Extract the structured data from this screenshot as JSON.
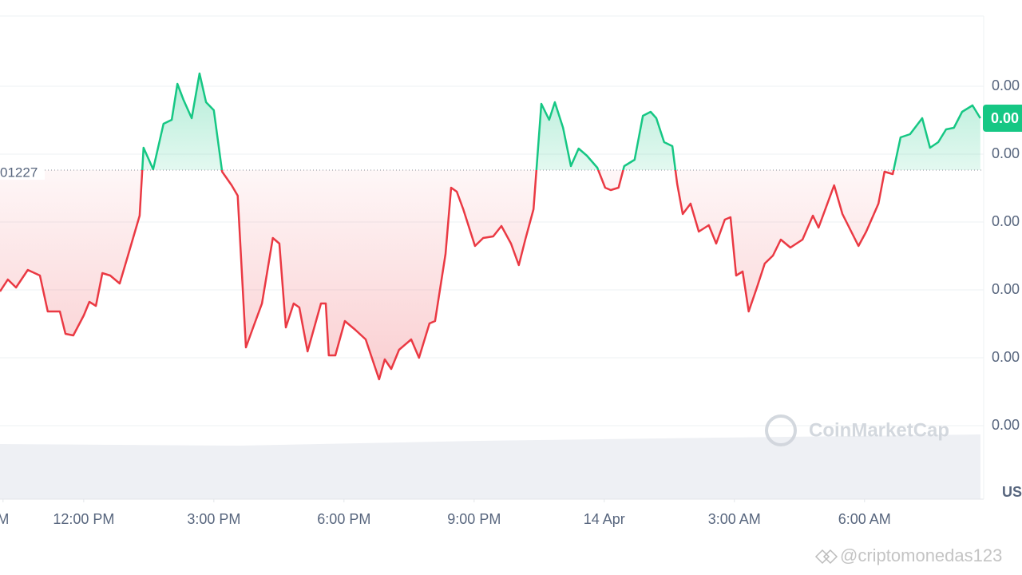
{
  "chart_data": {
    "type": "line",
    "x": [
      10.07,
      10.25,
      10.44,
      10.71,
      10.99,
      11.17,
      11.45,
      11.58,
      11.76,
      12.0,
      12.13,
      12.28,
      12.43,
      12.61,
      12.83,
      13.01,
      13.29,
      13.38,
      13.6,
      13.84,
      14.03,
      14.16,
      14.3,
      14.49,
      14.67,
      14.82,
      15.0,
      15.19,
      15.41,
      15.55,
      15.74,
      15.92,
      16.11,
      16.36,
      16.51,
      16.66,
      16.84,
      16.97,
      17.16,
      17.34,
      17.47,
      17.58,
      17.65,
      17.8,
      18.02,
      18.26,
      18.5,
      18.81,
      18.94,
      19.09,
      19.27,
      19.55,
      19.73,
      19.97,
      20.1,
      20.34,
      20.47,
      20.6,
      20.75,
      21.02,
      21.21,
      21.44,
      21.63,
      21.85,
      22.03,
      22.18,
      22.37,
      22.55,
      22.73,
      22.86,
      23.05,
      23.23,
      23.41,
      23.6,
      23.84,
      24.02,
      24.15,
      24.33,
      24.46,
      24.7,
      24.89,
      25.07,
      25.2,
      25.38,
      25.57,
      25.68,
      25.81,
      25.99,
      26.18,
      26.41,
      26.58,
      26.78,
      26.91,
      27.04,
      27.19,
      27.33,
      27.52,
      27.7,
      27.89,
      28.07,
      28.29,
      28.57,
      28.81,
      28.94,
      29.3,
      29.49,
      29.86,
      30.04,
      30.32,
      30.46,
      30.65,
      30.83,
      31.05,
      31.33,
      31.51,
      31.7,
      31.88,
      32.06,
      32.25,
      32.49,
      32.67
    ],
    "values": [
      0.00011662,
      0.00011722,
      0.00011682,
      0.0001177,
      0.00011742,
      0.00011562,
      0.00011562,
      0.0001145,
      0.00011442,
      0.00011542,
      0.0001161,
      0.0001159,
      0.00011754,
      0.00011742,
      0.00011702,
      0.00011834,
      0.00012042,
      0.00012382,
      0.00012274,
      0.00012502,
      0.00012522,
      0.00012702,
      0.00012622,
      0.0001253,
      0.00012754,
      0.0001261,
      0.0001257,
      0.00012262,
      0.00012194,
      0.00012142,
      0.00011382,
      0.0001149,
      0.00011602,
      0.0001193,
      0.00011902,
      0.00011482,
      0.00011602,
      0.00011582,
      0.00011362,
      0.00011502,
      0.00011602,
      0.00011602,
      0.00011342,
      0.00011342,
      0.00011514,
      0.0001147,
      0.00011422,
      0.00011222,
      0.00011322,
      0.00011274,
      0.0001137,
      0.00011422,
      0.0001133,
      0.00011502,
      0.00011514,
      0.0001185,
      0.00012182,
      0.00012162,
      0.00012074,
      0.0001189,
      0.0001193,
      0.00011938,
      0.0001199,
      0.00011902,
      0.00011794,
      0.00011922,
      0.00012074,
      0.00012602,
      0.00012522,
      0.0001261,
      0.00012482,
      0.0001229,
      0.00012378,
      0.00012342,
      0.00012282,
      0.00012182,
      0.0001217,
      0.00012182,
      0.0001229,
      0.00012322,
      0.00012542,
      0.00012562,
      0.0001253,
      0.0001241,
      0.0001239,
      0.00012202,
      0.0001205,
      0.00012102,
      0.00011962,
      0.00011994,
      0.00011902,
      0.00012022,
      0.00012034,
      0.00011742,
      0.00011762,
      0.00011562,
      0.00011682,
      0.00011802,
      0.00011842,
      0.00011922,
      0.00011882,
      0.00011922,
      0.00012042,
      0.00011982,
      0.00012194,
      0.0001205,
      0.0001189,
      0.00011962,
      0.00012102,
      0.00012262,
      0.0001225,
      0.00012434,
      0.0001245,
      0.0001253,
      0.00012382,
      0.0001241,
      0.00012474,
      0.00012482,
      0.00012562,
      0.00012594,
      0.0001253
    ],
    "up_color": "#16c784",
    "down_color": "#ea3943",
    "baseline": {
      "value": 0.0001227,
      "label": "01227"
    },
    "current_price": {
      "value": 0.0001253,
      "label": "0.00"
    },
    "xlim": [
      10.07,
      32.71
    ],
    "ylim": [
      0.00010962,
      0.00013042
    ],
    "yticks": [
      {
        "value": 0.0001269,
        "label": "0.00"
      },
      {
        "value": 0.0001235,
        "label": "0.00"
      },
      {
        "value": 0.0001201,
        "label": "0.00"
      },
      {
        "value": 0.0001167,
        "label": "0.00"
      },
      {
        "value": 0.0001133,
        "label": "0.00"
      },
      {
        "value": 0.0001099,
        "label": "0.00"
      }
    ],
    "xticks": [
      {
        "value": 10.14,
        "label": "M"
      },
      {
        "value": 12,
        "label": "12:00 PM"
      },
      {
        "value": 15,
        "label": "3:00 PM"
      },
      {
        "value": 18,
        "label": "6:00 PM"
      },
      {
        "value": 21,
        "label": "9:00 PM"
      },
      {
        "value": 24,
        "label": "14 Apr"
      },
      {
        "value": 27,
        "label": "3:00 AM"
      },
      {
        "value": 30,
        "label": "6:00 AM"
      }
    ],
    "grid": true,
    "currency_label": "US",
    "watermark": "CoinMarketCap"
  },
  "credit": "@criptomonedas123"
}
